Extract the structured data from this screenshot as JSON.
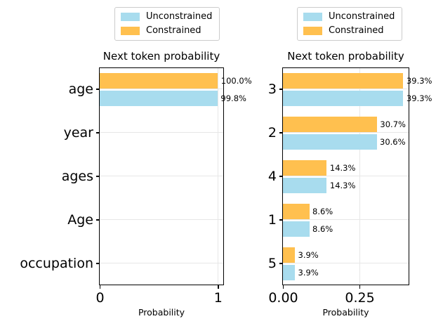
{
  "figure": {
    "background": "#ffffff"
  },
  "colors": {
    "unconstrained": "#a8dcee",
    "constrained": "#ffc04f",
    "grid": "#e7e7e7",
    "spine": "#000000",
    "text": "#000000",
    "legend_border": "#cccccc"
  },
  "chart_data": [
    {
      "type": "bar",
      "orientation": "horizontal",
      "title": "Next token probability",
      "xlabel": "Probability",
      "grid": true,
      "legend_position": "above",
      "legend": [
        {
          "name": "Unconstrained",
          "color_key": "unconstrained"
        },
        {
          "name": "Constrained",
          "color_key": "constrained"
        }
      ],
      "categories": [
        "age",
        "year",
        "ages",
        "Age",
        "occupation"
      ],
      "xlim": [
        0,
        1.04
      ],
      "xticks": [
        {
          "value": 0.0,
          "label": "0"
        },
        {
          "value": 1.0,
          "label": "1"
        }
      ],
      "series": [
        {
          "name": "Constrained",
          "color_key": "constrained",
          "values": [
            1.0,
            0.0,
            0.0,
            0.0,
            0.0
          ],
          "bar_labels": [
            "100.0%",
            "",
            "",
            "",
            ""
          ]
        },
        {
          "name": "Unconstrained",
          "color_key": "unconstrained",
          "values": [
            0.998,
            0.0,
            0.0,
            0.0,
            0.0
          ],
          "bar_labels": [
            "99.8%",
            "",
            "",
            "",
            ""
          ]
        }
      ]
    },
    {
      "type": "bar",
      "orientation": "horizontal",
      "title": "Next token probability",
      "xlabel": "Probability",
      "grid": true,
      "legend_position": "above",
      "legend": [
        {
          "name": "Unconstrained",
          "color_key": "unconstrained"
        },
        {
          "name": "Constrained",
          "color_key": "constrained"
        }
      ],
      "categories": [
        "3",
        "2",
        "4",
        "1",
        "5"
      ],
      "xlim": [
        0,
        0.408
      ],
      "xticks": [
        {
          "value": 0.0,
          "label": "0.00"
        },
        {
          "value": 0.25,
          "label": "0.25"
        }
      ],
      "series": [
        {
          "name": "Constrained",
          "color_key": "constrained",
          "values": [
            0.393,
            0.307,
            0.143,
            0.086,
            0.039
          ],
          "bar_labels": [
            "39.3%",
            "30.7%",
            "14.3%",
            "8.6%",
            "3.9%"
          ]
        },
        {
          "name": "Unconstrained",
          "color_key": "unconstrained",
          "values": [
            0.393,
            0.306,
            0.143,
            0.086,
            0.039
          ],
          "bar_labels": [
            "39.3%",
            "30.6%",
            "14.3%",
            "8.6%",
            "3.9%"
          ]
        }
      ]
    }
  ]
}
